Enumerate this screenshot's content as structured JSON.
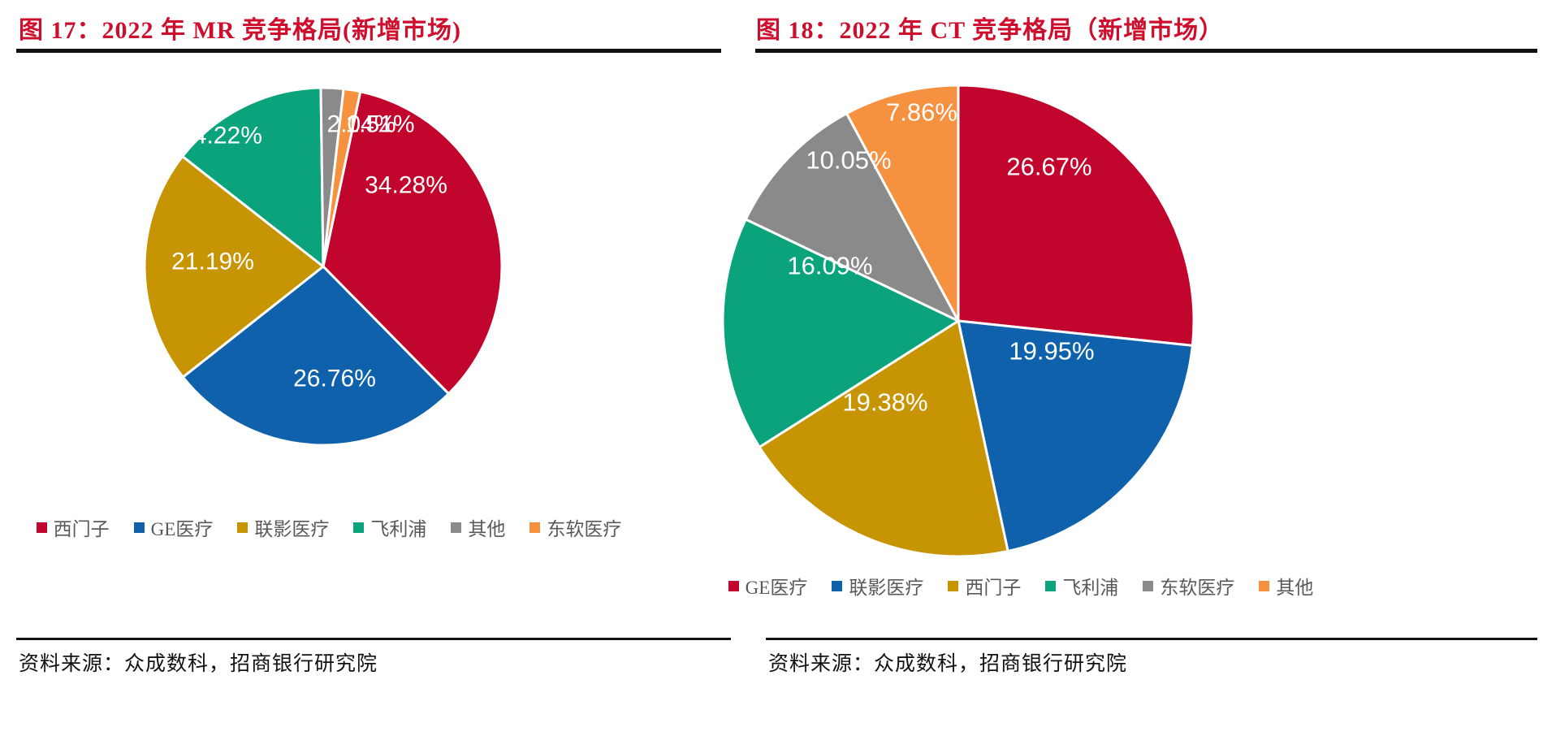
{
  "chart_data": [
    {
      "type": "pie",
      "title": "图 17：2022 年 MR 竞争格局(新增市场)",
      "categories": [
        "西门子",
        "GE医疗",
        "联影医疗",
        "飞利浦",
        "其他",
        "东软医疗"
      ],
      "values": [
        34.28,
        26.76,
        21.19,
        14.22,
        2.04,
        1.51
      ],
      "labels": [
        "34.28%",
        "26.76%",
        "21.19%",
        "14.22%",
        "2.04%",
        "1.51%"
      ],
      "colors": [
        "#c1052d",
        "#1061ac",
        "#c79404",
        "#0aa37c",
        "#8a8a8a",
        "#f6913f"
      ],
      "legend_position": "bottom",
      "source": "资料来源：众成数科，招商银行研究院"
    },
    {
      "type": "pie",
      "title": "图 18：2022 年 CT 竞争格局（新增市场）",
      "categories": [
        "GE医疗",
        "联影医疗",
        "西门子",
        "飞利浦",
        "东软医疗",
        "其他"
      ],
      "values": [
        26.67,
        19.95,
        19.38,
        16.09,
        10.05,
        7.86
      ],
      "labels": [
        "26.67%",
        "19.95%",
        "19.38%",
        "16.09%",
        "10.05%",
        "7.86%"
      ],
      "colors": [
        "#c1052d",
        "#1061ac",
        "#c79404",
        "#0aa37c",
        "#8a8a8a",
        "#f6913f"
      ],
      "legend_position": "bottom",
      "source": "资料来源：众成数科，招商银行研究院"
    }
  ],
  "colors": {
    "title_red": "#ce0e2d",
    "rule_black": "#111111",
    "legend_text": "#595959",
    "pie_label_text": "#ffffff"
  }
}
